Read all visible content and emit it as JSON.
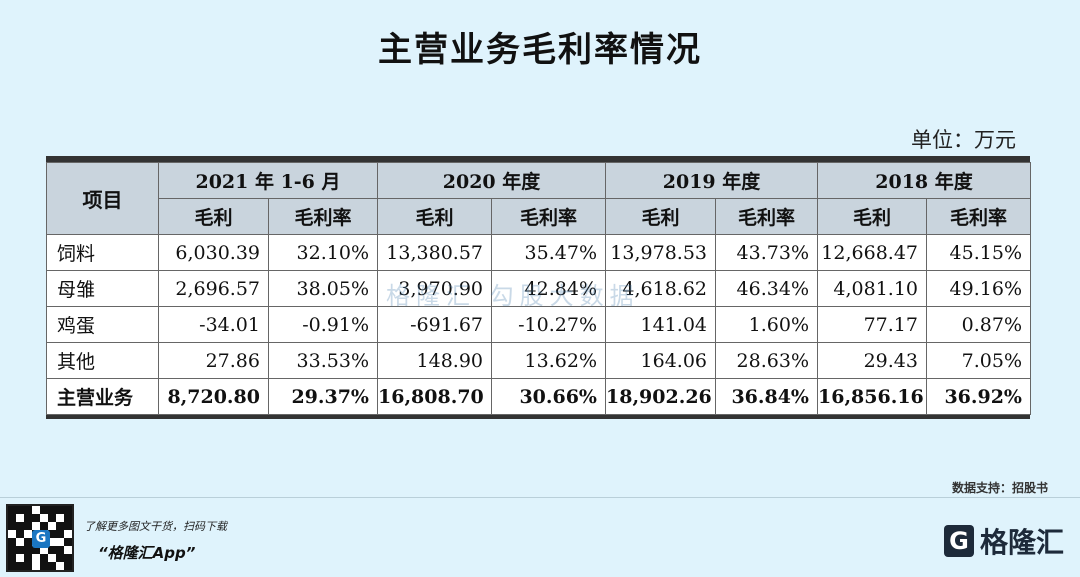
{
  "title": "主营业务毛利率情况",
  "unit": "单位：万元",
  "table": {
    "item_header": "项目",
    "periods": [
      "2021 年 1-6 月",
      "2020 年度",
      "2019 年度",
      "2018 年度"
    ],
    "sub_headers": [
      "毛利",
      "毛利率",
      "毛利",
      "毛利率",
      "毛利",
      "毛利率",
      "毛利",
      "毛利率"
    ],
    "rows": [
      {
        "label": "饲料",
        "values": [
          "6,030.39",
          "32.10%",
          "13,380.57",
          "35.47%",
          "13,978.53",
          "43.73%",
          "12,668.47",
          "45.15%"
        ]
      },
      {
        "label": "母雏",
        "values": [
          "2,696.57",
          "38.05%",
          "3,970.90",
          "42.84%",
          "4,618.62",
          "46.34%",
          "4,081.10",
          "49.16%"
        ]
      },
      {
        "label": "鸡蛋",
        "values": [
          "-34.01",
          "-0.91%",
          "-691.67",
          "-10.27%",
          "141.04",
          "1.60%",
          "77.17",
          "0.87%"
        ]
      },
      {
        "label": "其他",
        "values": [
          "27.86",
          "33.53%",
          "148.90",
          "13.62%",
          "164.06",
          "28.63%",
          "29.43",
          "7.05%"
        ]
      },
      {
        "label": "主营业务",
        "values": [
          "8,720.80",
          "29.37%",
          "16,808.70",
          "30.66%",
          "18,902.26",
          "36.84%",
          "16,856.16",
          "36.92%"
        ]
      }
    ]
  },
  "watermark": "格隆汇  勾股大数据",
  "source": "数据支持：招股书",
  "footer": {
    "promo": "了解更多图文干货，扫码下载",
    "app": "“格隆汇App”",
    "qr_glyph": "G",
    "brand_mark": "G",
    "brand_name": "格隆汇"
  }
}
